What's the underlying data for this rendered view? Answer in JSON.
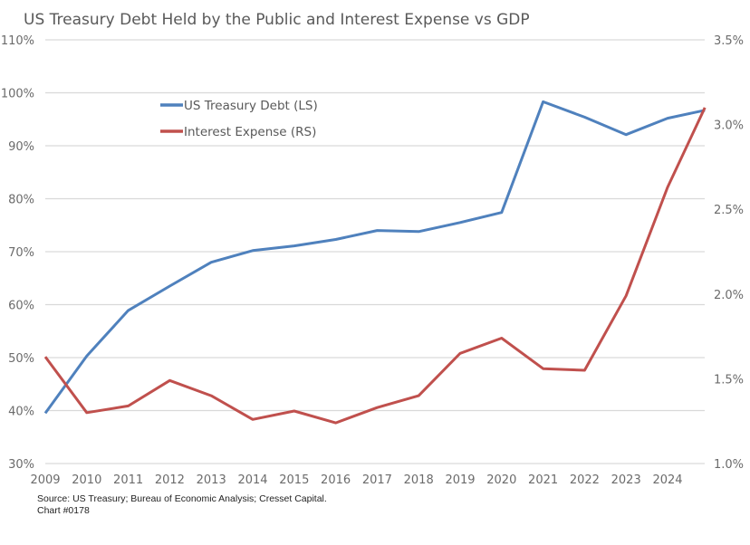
{
  "chart_data": {
    "type": "line",
    "title": "US Treasury Debt Held by the Public and Interest Expense vs GDP",
    "xlabel": "",
    "ylabel_left": "",
    "ylabel_right": "",
    "x": [
      2009,
      2010,
      2011,
      2012,
      2013,
      2014,
      2015,
      2016,
      2017,
      2018,
      2019,
      2020,
      2021,
      2022,
      2023,
      2024,
      2024.9
    ],
    "x_tick_labels": [
      "2009",
      "2010",
      "2011",
      "2012",
      "2013",
      "2014",
      "2015",
      "2016",
      "2017",
      "2018",
      "2019",
      "2020",
      "2021",
      "2022",
      "2023",
      "2024"
    ],
    "y_left": {
      "range": [
        30,
        110
      ],
      "ticks": [
        30,
        40,
        50,
        60,
        70,
        80,
        90,
        100,
        110
      ],
      "tick_labels": [
        "30%",
        "40%",
        "50%",
        "60%",
        "70%",
        "80%",
        "90%",
        "100%",
        "110%"
      ]
    },
    "y_right": {
      "range": [
        1.0,
        3.5
      ],
      "ticks": [
        1.0,
        1.5,
        2.0,
        2.5,
        3.0,
        3.5
      ],
      "tick_labels": [
        "1.0%",
        "1.5%",
        "2.0%",
        "2.5%",
        "3.0%",
        "3.5%"
      ]
    },
    "grid": true,
    "legend_position": "upper-left-inside",
    "series": [
      {
        "name": "US Treasury Debt (LS)",
        "axis": "left",
        "color": "#4F81BD",
        "values": [
          39.5,
          50.3,
          58.9,
          63.5,
          68.0,
          70.2,
          71.1,
          72.3,
          74.0,
          73.8,
          75.5,
          77.4,
          98.3,
          95.4,
          92.1,
          95.2,
          96.7
        ]
      },
      {
        "name": "Interest Expense (RS)",
        "axis": "right",
        "color": "#C0504D",
        "values": [
          1.63,
          1.3,
          1.34,
          1.49,
          1.4,
          1.26,
          1.31,
          1.24,
          1.33,
          1.4,
          1.65,
          1.74,
          1.56,
          1.55,
          1.99,
          2.63,
          3.1
        ]
      }
    ]
  },
  "footer": {
    "source": "Source: US Treasury; Bureau of Economic Analysis; Cresset Capital.",
    "chart_id": "Chart #0178"
  }
}
